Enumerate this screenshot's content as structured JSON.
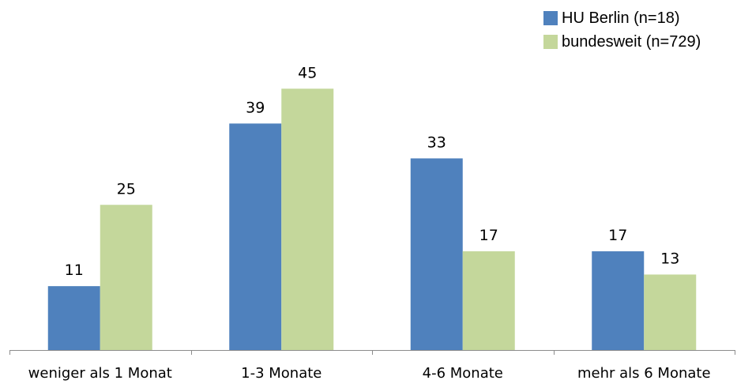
{
  "chart_data": {
    "type": "bar",
    "categories": [
      "weniger als 1 Monat",
      "1-3 Monate",
      "4-6 Monate",
      "mehr als 6 Monate"
    ],
    "series": [
      {
        "name": "HU Berlin (n=18)",
        "values": [
          11,
          39,
          33,
          17
        ],
        "color": "#4F81BD"
      },
      {
        "name": "bundesweit (n=729)",
        "values": [
          25,
          45,
          17,
          13
        ],
        "color": "#C4D79B"
      }
    ],
    "title": "",
    "xlabel": "",
    "ylabel": "",
    "ylim": [
      0,
      50
    ],
    "grid": false,
    "legend_position": "top-right"
  }
}
